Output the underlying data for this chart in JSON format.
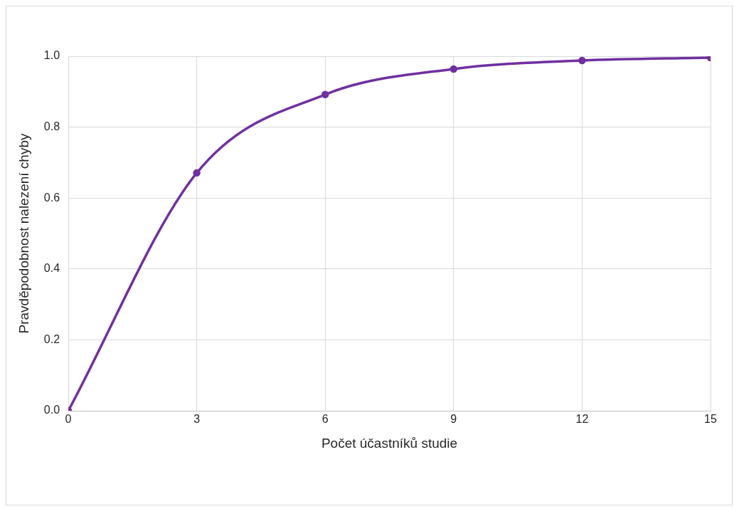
{
  "chart_data": {
    "type": "line",
    "xlabel": "Počet účastníků studie",
    "ylabel": "Pravděpodobnost nalezení chyby",
    "x": [
      0,
      3,
      6,
      9,
      12,
      15
    ],
    "series": [
      {
        "color": "#7030a0",
        "values": [
          0,
          0.671,
          0.892,
          0.964,
          0.988,
          0.996
        ]
      }
    ],
    "xlim": [
      0,
      15
    ],
    "xticks": [
      0,
      3,
      6,
      9,
      12,
      15
    ],
    "ylim": [
      0,
      1
    ],
    "yticks": [
      {
        "value": 0,
        "label": "0.0"
      },
      {
        "value": 0.2,
        "label": "0.2"
      },
      {
        "value": 0.4,
        "label": "0.4"
      },
      {
        "value": 0.6,
        "label": "0.6"
      },
      {
        "value": 0.8,
        "label": "0.8"
      },
      {
        "value": 1,
        "label": "1.0"
      }
    ],
    "grid": true,
    "legend": false,
    "marker": "circle",
    "line_style": "solid"
  }
}
